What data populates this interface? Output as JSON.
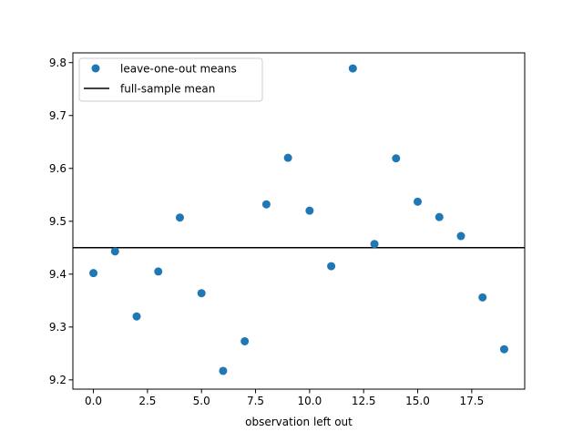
{
  "chart_data": {
    "type": "scatter",
    "xlabel": "observation left out",
    "ylabel": "",
    "title": "",
    "xlim": [
      -0.95,
      19.95
    ],
    "ylim": [
      9.1825,
      9.8185
    ],
    "x_ticks": [
      0.0,
      2.5,
      5.0,
      7.5,
      10.0,
      12.5,
      15.0,
      17.5
    ],
    "x_tick_labels": [
      "0.0",
      "2.5",
      "5.0",
      "7.5",
      "10.0",
      "12.5",
      "15.0",
      "17.5"
    ],
    "y_ticks": [
      9.2,
      9.3,
      9.4,
      9.5,
      9.6,
      9.7,
      9.8
    ],
    "y_tick_labels": [
      "9.2",
      "9.3",
      "9.4",
      "9.5",
      "9.6",
      "9.7",
      "9.8"
    ],
    "grid": false,
    "legend_position": "top-left",
    "series": [
      {
        "name": "leave-one-out means",
        "kind": "scatter",
        "color": "#1f77b4",
        "x": [
          0,
          1,
          2,
          3,
          4,
          5,
          6,
          7,
          8,
          9,
          10,
          11,
          12,
          13,
          14,
          15,
          16,
          17,
          18,
          19
        ],
        "y": [
          9.402,
          9.443,
          9.32,
          9.405,
          9.507,
          9.364,
          9.217,
          9.273,
          9.532,
          9.62,
          9.52,
          9.415,
          9.789,
          9.457,
          9.619,
          9.537,
          9.508,
          9.472,
          9.356,
          9.258
        ]
      },
      {
        "name": "full-sample mean",
        "kind": "hline",
        "color": "#000000",
        "y": 9.45
      }
    ]
  }
}
